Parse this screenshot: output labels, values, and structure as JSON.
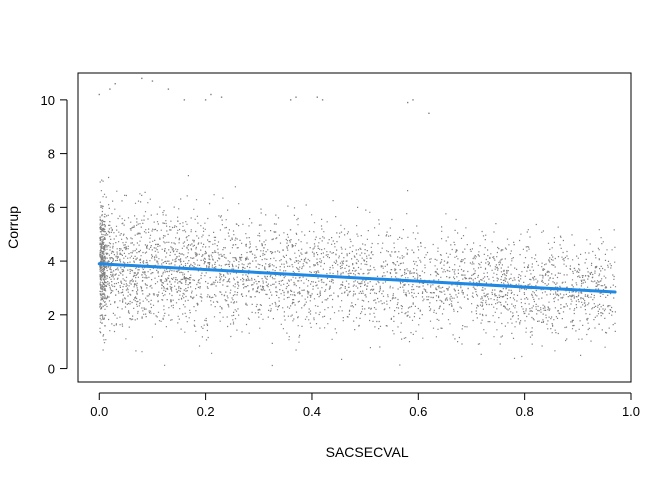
{
  "chart_data": {
    "type": "scatter",
    "title": "",
    "xlabel": "SACSECVAL",
    "ylabel": "Corrup",
    "xlim": [
      -0.04,
      1.0
    ],
    "ylim": [
      -0.5,
      11.0
    ],
    "x_ticks": [
      0.0,
      0.2,
      0.4,
      0.6,
      0.8,
      1.0
    ],
    "x_tick_labels": [
      "0.0",
      "0.2",
      "0.4",
      "0.6",
      "0.8",
      "1.0"
    ],
    "y_ticks": [
      0,
      2,
      4,
      6,
      8,
      10
    ],
    "y_tick_labels": [
      "0",
      "2",
      "4",
      "6",
      "8",
      "10"
    ],
    "grid": false,
    "point_color": "#808080",
    "fit_line_color": "#1E88E5",
    "point_cloud": {
      "description": "dense jittered scatter, roughly 15000 points",
      "x_range": [
        0.0,
        0.97
      ],
      "y_center_at_x0": 3.9,
      "y_center_at_x097": 2.85,
      "y_spread_sd": 1.1
    },
    "outliers": [
      {
        "x": 0.0,
        "y": 10.2
      },
      {
        "x": 0.02,
        "y": 10.4
      },
      {
        "x": 0.03,
        "y": 10.6
      },
      {
        "x": 0.08,
        "y": 10.8
      },
      {
        "x": 0.1,
        "y": 10.7
      },
      {
        "x": 0.13,
        "y": 10.4
      },
      {
        "x": 0.16,
        "y": 10.0
      },
      {
        "x": 0.2,
        "y": 10.0
      },
      {
        "x": 0.21,
        "y": 10.2
      },
      {
        "x": 0.23,
        "y": 10.1
      },
      {
        "x": 0.36,
        "y": 10.0
      },
      {
        "x": 0.37,
        "y": 10.1
      },
      {
        "x": 0.41,
        "y": 10.1
      },
      {
        "x": 0.42,
        "y": 10.0
      },
      {
        "x": 0.58,
        "y": 9.9
      },
      {
        "x": 0.59,
        "y": 10.0
      },
      {
        "x": 0.62,
        "y": 9.5
      }
    ],
    "series": [
      {
        "type": "line",
        "x": [
          0.0,
          0.97
        ],
        "y": [
          3.9,
          2.85
        ]
      }
    ]
  }
}
